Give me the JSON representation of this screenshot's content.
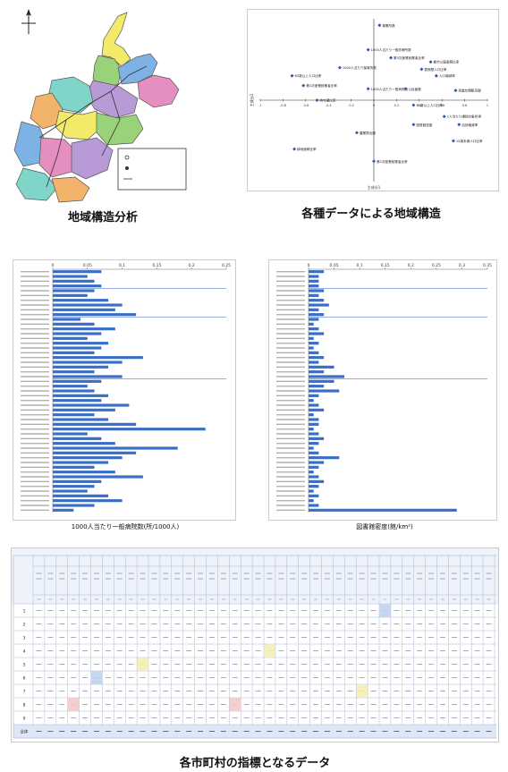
{
  "captions": {
    "map": "地域構造分析",
    "scatter": "各種データによる地域構造",
    "hospital_chart": "1000人当たり一般病院数(所/1000人)",
    "library_chart": "図書館密度(館/km²)",
    "table": "各市町村の指標となるデータ"
  },
  "map": {
    "legend": [
      "",
      "",
      ""
    ],
    "colors": [
      "#f2ea68",
      "#9ad27a",
      "#7fb2e4",
      "#e58fc0",
      "#b89ad6",
      "#7fd6c8",
      "#f2b46a"
    ]
  },
  "scatter": {
    "x_axis_label": "主成分1",
    "y_axis_label": "主成分2",
    "x_ticks": [
      "-1",
      "-0.8",
      "-0.6",
      "-0.4",
      "-0.2",
      "0",
      "0.2",
      "0.4",
      "0.6",
      "0.8",
      "1"
    ],
    "points": [
      {
        "label": "事業所数",
        "x": 0.05,
        "y": 0.92
      },
      {
        "label": "1000人当たり一般診療所数",
        "x": -0.05,
        "y": 0.62
      },
      {
        "label": "第3次産業就業者比率",
        "x": 0.15,
        "y": 0.52
      },
      {
        "label": "都市公園面積比率",
        "x": 0.5,
        "y": 0.47
      },
      {
        "label": "1000人当たり保育所数",
        "x": -0.3,
        "y": 0.4
      },
      {
        "label": "昼夜間人口比率",
        "x": 0.42,
        "y": 0.38
      },
      {
        "label": "65歳以上人口比率",
        "x": -0.72,
        "y": 0.3
      },
      {
        "label": "第1次産業就業者比率",
        "x": -0.62,
        "y": 0.18
      },
      {
        "label": "人口増減率",
        "x": 0.55,
        "y": 0.3
      },
      {
        "label": "1000人当たり一般病院数",
        "x": -0.05,
        "y": 0.14
      },
      {
        "label": "公民館数",
        "x": 0.28,
        "y": 0.14
      },
      {
        "label": "商業年間販売額",
        "x": 0.72,
        "y": 0.12
      },
      {
        "label": "持ち家比率",
        "x": -0.5,
        "y": 0.0
      },
      {
        "label": "15歳以上人口比率",
        "x": 0.35,
        "y": -0.06
      },
      {
        "label": "1人当たり課税対象所得",
        "x": 0.62,
        "y": -0.2
      },
      {
        "label": "自然増減率",
        "x": 0.75,
        "y": -0.3
      },
      {
        "label": "図書館密度",
        "x": 0.35,
        "y": -0.3
      },
      {
        "label": "農業算出額",
        "x": -0.15,
        "y": -0.4
      },
      {
        "label": "15歳未満人口比率",
        "x": 0.7,
        "y": -0.5
      },
      {
        "label": "耕地面積比率",
        "x": -0.7,
        "y": -0.6
      },
      {
        "label": "第2次産業就業者比率",
        "x": 0.0,
        "y": -0.75
      }
    ]
  },
  "hospital_chart": {
    "ticks": [
      "0",
      "0.05",
      "0.1",
      "0.15",
      "0.2",
      "0.25"
    ],
    "max": 0.25,
    "values": [
      0.07,
      0.05,
      0.06,
      0.07,
      0.06,
      0.05,
      0.08,
      0.1,
      0.09,
      0.12,
      0.04,
      0.06,
      0.09,
      0.07,
      0.05,
      0.08,
      0.07,
      0.06,
      0.13,
      0.1,
      0.08,
      0.06,
      0.1,
      0.07,
      0.05,
      0.06,
      0.08,
      0.07,
      0.11,
      0.09,
      0.06,
      0.08,
      0.12,
      0.22,
      0.05,
      0.07,
      0.09,
      0.18,
      0.12,
      0.1,
      0.08,
      0.06,
      0.09,
      0.13,
      0.07,
      0.06,
      0.05,
      0.08,
      0.1,
      0.06,
      0.03
    ]
  },
  "library_chart": {
    "ticks": [
      "0",
      "0.05",
      "0.1",
      "0.15",
      "0.2",
      "0.25",
      "0.3",
      "0.35"
    ],
    "max": 0.35,
    "values": [
      0.03,
      0.02,
      0.02,
      0.02,
      0.03,
      0.02,
      0.03,
      0.04,
      0.02,
      0.03,
      0.02,
      0.01,
      0.02,
      0.03,
      0.01,
      0.02,
      0.01,
      0.02,
      0.03,
      0.02,
      0.05,
      0.03,
      0.07,
      0.05,
      0.03,
      0.06,
      0.02,
      0.01,
      0.02,
      0.03,
      0.01,
      0.02,
      0.02,
      0.01,
      0.02,
      0.03,
      0.02,
      0.01,
      0.02,
      0.06,
      0.03,
      0.02,
      0.01,
      0.02,
      0.03,
      0.02,
      0.01,
      0.02,
      0.01,
      0.02,
      0.29
    ]
  },
  "table": {
    "rows": [
      "1",
      "2",
      "3",
      "4",
      "5",
      "6",
      "7",
      "8",
      "9",
      "全体"
    ],
    "row_highlights": [
      {
        "row": 4,
        "col": 20,
        "tone": "yel"
      },
      {
        "row": 5,
        "col": 9,
        "tone": "yel"
      },
      {
        "row": 6,
        "col": 5,
        "tone": "blue"
      },
      {
        "row": 7,
        "col": 28,
        "tone": "yel"
      },
      {
        "row": 8,
        "col": 3,
        "tone": "red"
      },
      {
        "row": 8,
        "col": 17,
        "tone": "red"
      },
      {
        "row": 1,
        "col": 30,
        "tone": "blue"
      }
    ]
  }
}
